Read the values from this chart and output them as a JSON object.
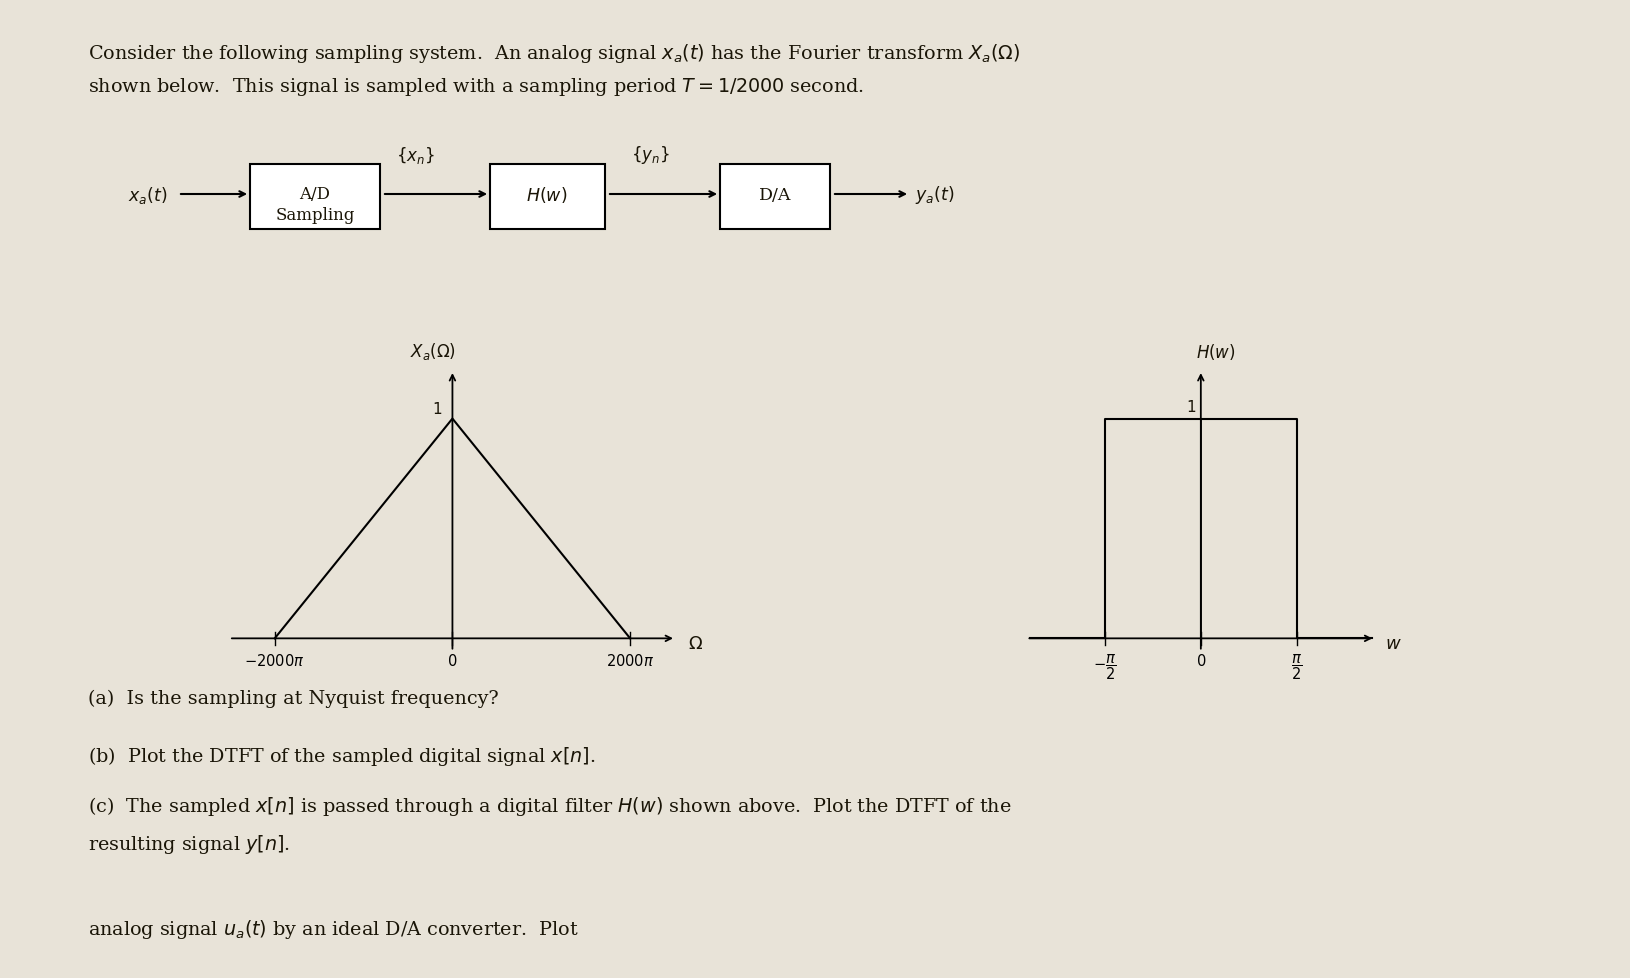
{
  "bg_color": "#e8e3d8",
  "text_color": "#1a1507",
  "title_line1": "Consider the following sampling system.  An analog signal $x_a(t)$ has the Fourier transform $X_a(\\Omega)$",
  "title_line2": "shown below.  This signal is sampled with a sampling period $T = 1/2000$ second.",
  "block_diagram": {
    "xa_label": "$x_a(t)$",
    "ad_line1": "A/D",
    "ad_line2": "Sampling",
    "xn_label": "$\\{x_n\\}$",
    "hw_label": "$H(w)$",
    "yn_label": "$\\{y_n\\}$",
    "da_label": "D/A",
    "ya_label": "$y_a(t)$"
  },
  "plot1": {
    "ylabel": "$X_a(\\Omega)$",
    "xlabel": "$\\Omega$",
    "peak_label": "1"
  },
  "plot2": {
    "ylabel": "$H(w)$",
    "xlabel": "$w$",
    "peak_label": "1"
  },
  "q_a": "(a)  Is the sampling at Nyquist frequency?",
  "q_b": "(b)  Plot the DTFT of the sampled digital signal $x[n]$.",
  "q_c1": "(c)  The sampled $x[n]$ is passed through a digital filter $H(w)$ shown above.  Plot the DTFT of the",
  "q_c2": "resulting signal $y[n]$.",
  "bottom_partial": "analog signal $u_a(t)$ by an ideal D/A converter.  Plot"
}
